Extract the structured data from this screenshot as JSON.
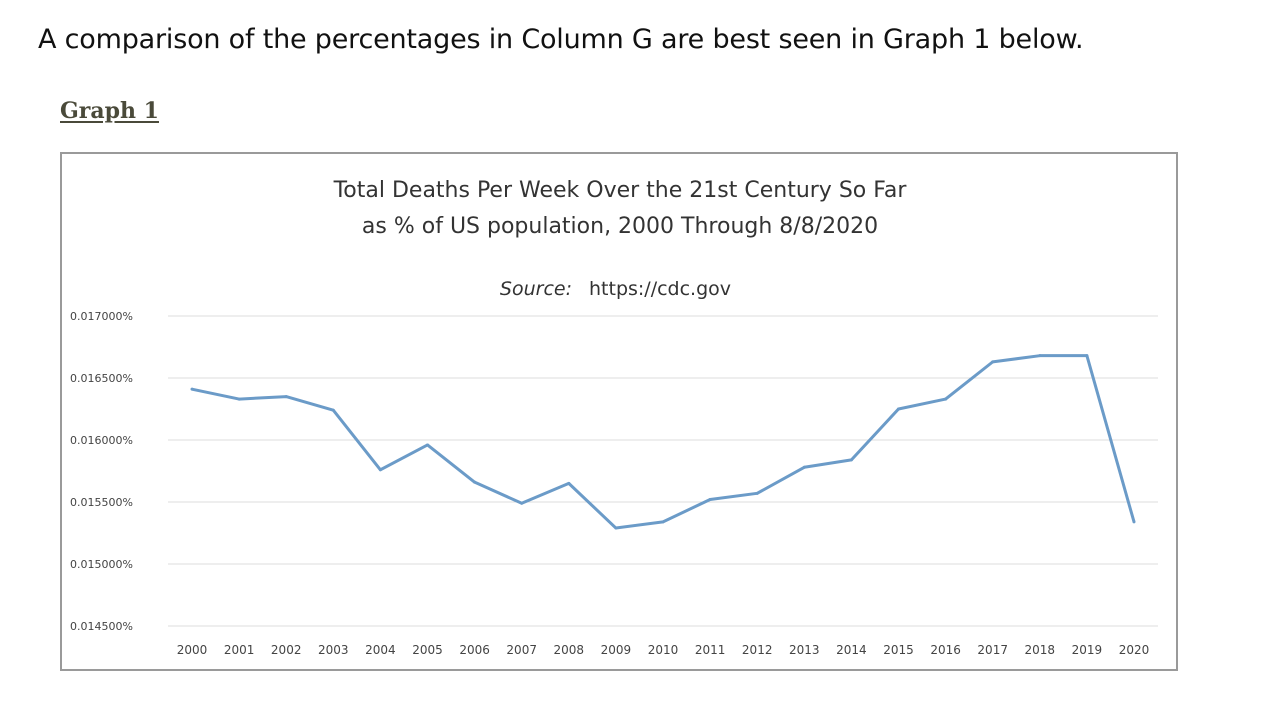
{
  "intro_text": "A comparison of the percentages in Column G are best seen in Graph 1 below.",
  "graph_label": "Graph 1",
  "chart_data": {
    "type": "line",
    "title_line1": "Total Deaths Per Week Over the 21st Century So Far",
    "title_line2": "as % of US population, 2000 Through 8/8/2020",
    "source_label": "Source:",
    "source_url": "https://cdc.gov",
    "categories": [
      "2000",
      "2001",
      "2002",
      "2003",
      "2004",
      "2005",
      "2006",
      "2007",
      "2008",
      "2009",
      "2010",
      "2011",
      "2012",
      "2013",
      "2014",
      "2015",
      "2016",
      "2017",
      "2018",
      "2019",
      "2020"
    ],
    "series": [
      {
        "name": "Total deaths per week as % of US population",
        "color": "#6b9bc8",
        "values": [
          0.01641,
          0.01633,
          0.01635,
          0.01624,
          0.01576,
          0.01596,
          0.01566,
          0.01549,
          0.01565,
          0.01529,
          0.01534,
          0.01552,
          0.01557,
          0.01578,
          0.01584,
          0.01625,
          0.01633,
          0.01663,
          0.01668,
          0.01668,
          0.01534
        ]
      }
    ],
    "yticks": [
      "0.017000%",
      "0.016500%",
      "0.016000%",
      "0.015500%",
      "0.015000%",
      "0.014500%"
    ],
    "ytick_values": [
      0.017,
      0.0165,
      0.016,
      0.0155,
      0.015,
      0.0145
    ],
    "ylim": [
      0.0145,
      0.017
    ],
    "xlabel": "",
    "ylabel": "",
    "grid": true,
    "legend": "none"
  }
}
